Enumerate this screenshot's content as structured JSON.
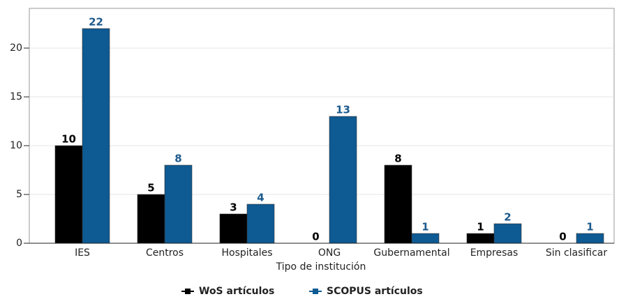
{
  "chart_data": {
    "type": "bar",
    "x_label": "Tipo de institución",
    "categories": [
      "IES",
      "Centros",
      "Hospitales",
      "ONG",
      "Gubernamental",
      "Empresas",
      "Sin clasificar"
    ],
    "series": [
      {
        "name": "WoS artículos",
        "color": "#000000",
        "label_color": "#000000",
        "values": [
          10,
          5,
          3,
          0,
          8,
          1,
          0
        ]
      },
      {
        "name": "SCOPUS artículos",
        "color": "#0e5a93",
        "label_color": "#1d5a8c",
        "values": [
          22,
          8,
          4,
          13,
          1,
          2,
          1
        ]
      }
    ],
    "ylim": [
      0,
      24
    ],
    "yticks": [
      0,
      5,
      10,
      15,
      20
    ],
    "grid": true
  }
}
